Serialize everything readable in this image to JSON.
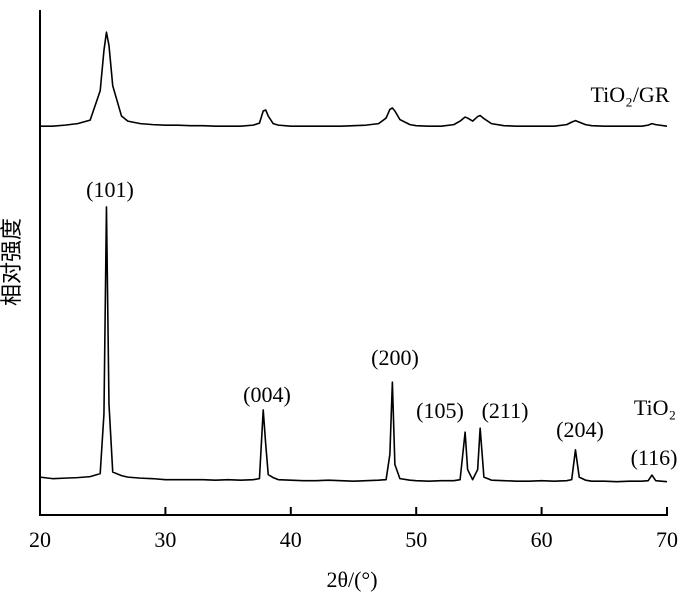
{
  "chart_data": {
    "type": "line",
    "xlabel": "2θ/(°)",
    "ylabel": "相对强度",
    "x": [
      20,
      21,
      22,
      23,
      24,
      24.8,
      25.1,
      25.3,
      25.5,
      25.8,
      26.5,
      27,
      28,
      29,
      30,
      31,
      32,
      33,
      34,
      35,
      36,
      37,
      37.5,
      37.8,
      38,
      38.2,
      38.6,
      39,
      40,
      41,
      42,
      43,
      44,
      45,
      46,
      47,
      47.6,
      47.9,
      48.1,
      48.3,
      48.7,
      49.5,
      50,
      51,
      52,
      53,
      53.5,
      53.9,
      54.1,
      54.5,
      54.9,
      55.1,
      55.4,
      56,
      57,
      58,
      59,
      60,
      61,
      62,
      62.4,
      62.7,
      63,
      63.5,
      64,
      65,
      66,
      67,
      68,
      68.5,
      68.8,
      69.1,
      70
    ],
    "series": [
      {
        "name": "TiO₂/GR",
        "color": "#000000",
        "values": [
          77,
          77,
          77.2,
          77.5,
          78.2,
          84,
          92,
          95.6,
          93,
          85,
          79,
          78,
          77.5,
          77.3,
          77.2,
          77.2,
          77.1,
          77.1,
          77,
          77,
          77,
          77.2,
          77.6,
          80,
          80.2,
          79,
          77.5,
          77.2,
          77,
          77,
          77,
          77,
          77,
          77.1,
          77.2,
          77.5,
          78.6,
          80.3,
          80.6,
          80,
          78.3,
          77.3,
          77.1,
          77,
          77,
          77.3,
          78,
          78.8,
          78.6,
          78,
          78.9,
          79.1,
          78.5,
          77.5,
          77.1,
          77,
          77,
          77,
          77,
          77.3,
          77.8,
          78.1,
          77.8,
          77.3,
          77.1,
          77,
          77,
          77,
          77,
          77.2,
          77.5,
          77.3,
          77
        ]
      },
      {
        "name": "TiO₂",
        "color": "#000000",
        "values": [
          7.5,
          7.2,
          7.3,
          7.4,
          7.6,
          8.2,
          20,
          61,
          22,
          8.5,
          7.8,
          7.5,
          7.3,
          7.2,
          7,
          7,
          7,
          7,
          6.9,
          7,
          6.9,
          7,
          7.2,
          20.8,
          14,
          8,
          7.4,
          7,
          6.9,
          6.8,
          6.8,
          6.9,
          6.8,
          6.7,
          6.8,
          6.9,
          7,
          12,
          26.3,
          10,
          7.2,
          6.9,
          6.8,
          6.7,
          6.8,
          6.8,
          7,
          16.4,
          9,
          7,
          9,
          17.2,
          7.5,
          6.9,
          6.8,
          6.7,
          6.7,
          6.8,
          6.7,
          6.8,
          7,
          12.9,
          7.5,
          6.9,
          6.7,
          6.7,
          6.6,
          6.7,
          6.7,
          6.8,
          7.9,
          6.8,
          6.6
        ]
      }
    ],
    "annotations": [
      "(101)",
      "(004)",
      "(200)",
      "(105)",
      "(211)",
      "(204)",
      "(116)"
    ],
    "xlim": [
      20,
      70
    ],
    "xticks": [
      20,
      30,
      40,
      50,
      60,
      70
    ],
    "ylim": [
      0,
      100
    ]
  }
}
